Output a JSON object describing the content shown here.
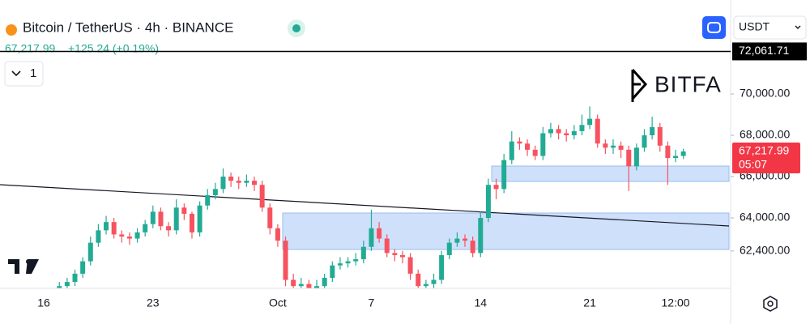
{
  "header": {
    "symbol": "Bitcoin / TetherUS · 4h · BINANCE",
    "change": "+125.24 (+0.19%)",
    "interval_menu": "1",
    "currency_menu": "USDT",
    "logo": "BITFA"
  },
  "chart_data": {
    "type": "candlestick",
    "categories": [
      "16",
      null,
      null,
      null,
      null,
      null,
      null,
      null,
      null,
      null,
      null,
      null,
      null,
      null,
      "23",
      null,
      null,
      null,
      null,
      null,
      null,
      null,
      null,
      null,
      null,
      null,
      null,
      null,
      null,
      null,
      "Oct",
      null,
      null,
      null,
      null,
      null,
      null,
      null,
      null,
      null,
      null,
      null,
      "7",
      null,
      null,
      null,
      null,
      null,
      null,
      null,
      null,
      null,
      null,
      null,
      null,
      null,
      "14",
      null,
      null,
      null,
      null,
      null,
      null,
      null,
      null,
      null,
      null,
      null,
      null,
      null,
      "21",
      null,
      null,
      null,
      null,
      null,
      null,
      null,
      null,
      null,
      null,
      "12:00",
      null
    ],
    "open": [
      null,
      null,
      60500,
      60700,
      60900,
      61300,
      61900,
      62800,
      63400,
      63800,
      63200,
      63100,
      63000,
      63300,
      63700,
      64300,
      63600,
      63400,
      64500,
      64200,
      63300,
      64600,
      65100,
      65400,
      66000,
      65800,
      65700,
      65800,
      65600,
      64500,
      63500,
      62900,
      61000,
      60700,
      60800,
      60500,
      60700,
      61100,
      61700,
      61800,
      61900,
      62000,
      62600,
      63500,
      63000,
      62300,
      62200,
      62100,
      61300,
      60700,
      60800,
      61000,
      62200,
      62800,
      63000,
      62900,
      62300,
      64000,
      65600,
      65400,
      66800,
      67700,
      67600,
      67300,
      67000,
      68100,
      68300,
      68100,
      68000,
      68200,
      68500,
      68800,
      67600,
      67400,
      67500,
      67300,
      66500,
      67400,
      68000,
      68400,
      67500,
      66900,
      67000
    ],
    "high": [
      null,
      null,
      60900,
      61100,
      61500,
      62100,
      63100,
      63700,
      64100,
      64000,
      63400,
      63300,
      63500,
      63900,
      64600,
      64500,
      63800,
      64900,
      64700,
      64300,
      64800,
      65400,
      65700,
      66400,
      66200,
      66000,
      66100,
      66000,
      65800,
      64700,
      63700,
      63100,
      61300,
      61100,
      61000,
      61000,
      61300,
      61900,
      62100,
      62100,
      62300,
      62900,
      64400,
      63800,
      63200,
      62500,
      62400,
      62300,
      61500,
      61000,
      61300,
      62400,
      63000,
      63300,
      63200,
      63100,
      64300,
      65900,
      65900,
      67100,
      68200,
      67900,
      67800,
      67500,
      68400,
      68600,
      68500,
      68300,
      68500,
      69000,
      69400,
      69000,
      67800,
      67800,
      67700,
      67500,
      67600,
      68300,
      68900,
      68600,
      67700,
      67300,
      67350
    ],
    "low": [
      null,
      null,
      60300,
      60500,
      60700,
      61100,
      61700,
      62600,
      63200,
      63000,
      62800,
      62700,
      62800,
      63100,
      63500,
      63400,
      63100,
      63200,
      63900,
      63000,
      63100,
      64400,
      64900,
      65200,
      65500,
      65400,
      65500,
      65300,
      64300,
      63200,
      62600,
      60700,
      60400,
      60400,
      60200,
      60300,
      60500,
      60900,
      61500,
      61600,
      61700,
      61800,
      62400,
      62800,
      62100,
      61900,
      61800,
      61000,
      60400,
      60500,
      60600,
      60800,
      62000,
      62600,
      62600,
      62100,
      62100,
      63800,
      64900,
      65200,
      66600,
      67300,
      67000,
      66800,
      66800,
      67900,
      67800,
      67700,
      67800,
      68000,
      68300,
      67400,
      67100,
      67100,
      66900,
      65300,
      66300,
      67200,
      67800,
      67200,
      65600,
      66700,
      66850
    ],
    "close": [
      null,
      null,
      60700,
      60900,
      61300,
      61900,
      62800,
      63400,
      63800,
      63200,
      63100,
      63000,
      63300,
      63700,
      64300,
      63600,
      63400,
      64500,
      64200,
      63300,
      64600,
      65100,
      65400,
      66000,
      65800,
      65700,
      65800,
      65600,
      64500,
      63500,
      62900,
      61000,
      60700,
      60800,
      60500,
      60700,
      61100,
      61700,
      61800,
      61900,
      62000,
      62600,
      63500,
      63000,
      62300,
      62200,
      62100,
      61300,
      60700,
      60800,
      61000,
      62200,
      62800,
      63000,
      62900,
      62300,
      64000,
      65600,
      65400,
      66800,
      67700,
      67600,
      67300,
      67000,
      68100,
      68300,
      68100,
      68000,
      68200,
      68500,
      68800,
      67600,
      67400,
      67500,
      67300,
      66500,
      67400,
      68000,
      68400,
      67500,
      66900,
      67000,
      67217.99
    ],
    "up_color": "#22ab94",
    "down_color": "#f7525f",
    "ylim": [
      60590,
      74550
    ],
    "yticks": [
      {
        "value": 70000,
        "label": "70,000.00"
      },
      {
        "value": 68000,
        "label": "68,000.00"
      },
      {
        "value": 66000,
        "label": "66,000.00"
      },
      {
        "value": 64000,
        "label": "64,000.00"
      },
      {
        "value": 62400,
        "label": "62,400.00"
      }
    ],
    "price_line": {
      "value": 72061.71,
      "label": "72,061.71"
    },
    "last_price_label": "67,217.99",
    "countdown": "05:07"
  }
}
